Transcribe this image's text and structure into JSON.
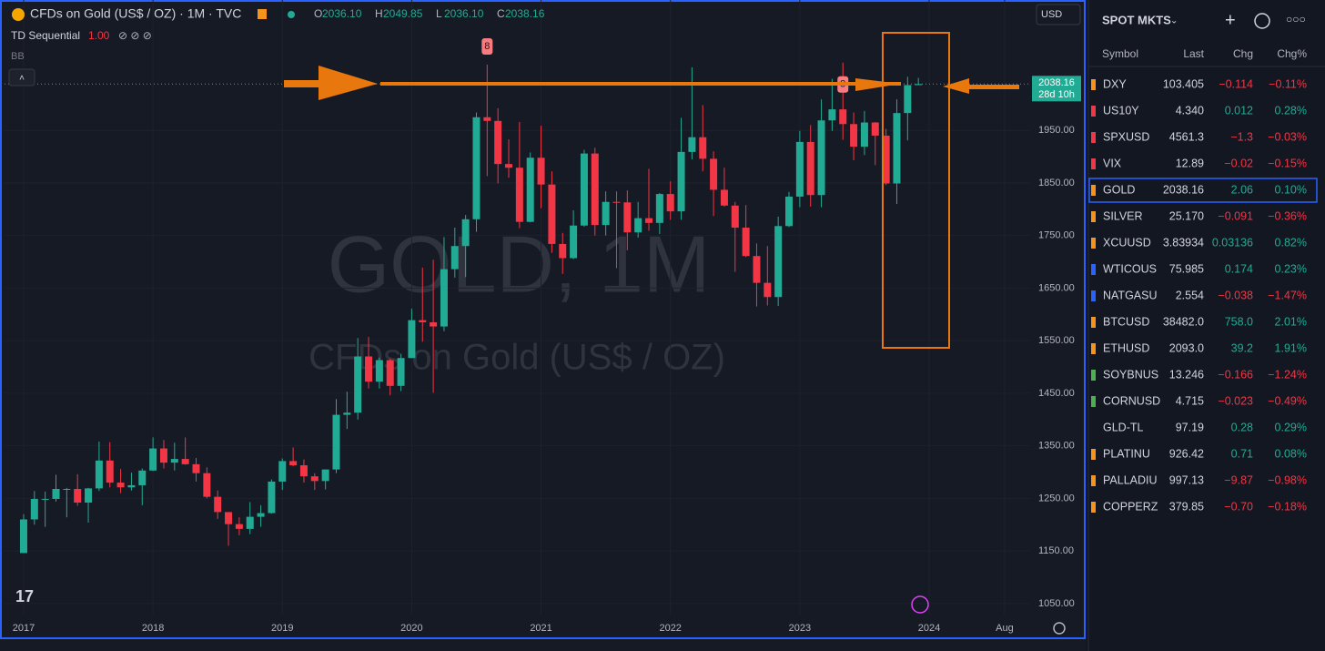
{
  "header": {
    "title": "CFDs on Gold (US$ / OZ) · 1M · TVC",
    "ohlc": [
      [
        "O",
        "2036.10"
      ],
      [
        "H",
        "2049.85"
      ],
      [
        "L",
        "2036.10"
      ],
      [
        "C",
        "2038.16"
      ]
    ],
    "indicator": "TD Sequential",
    "indicator_value": "1.00",
    "bb": "BB",
    "currency": "USD"
  },
  "chart_data": {
    "type": "candlestick",
    "watermark": "GOLD, 1M",
    "watermark_sub": "CFDs on Gold (US$ / OZ)",
    "up_color": "#22ab94",
    "down_color": "#f23645",
    "xlim": [
      -1.77,
      93.37
    ],
    "ylim": [
      1029,
      2198
    ],
    "xticks": [
      {
        "value": 0,
        "label": "2017"
      },
      {
        "value": 12,
        "label": "2018"
      },
      {
        "value": 24,
        "label": "2019"
      },
      {
        "value": 36,
        "label": "2020"
      },
      {
        "value": 48,
        "label": "2021"
      },
      {
        "value": 60,
        "label": "2022"
      },
      {
        "value": 72,
        "label": "2023"
      },
      {
        "value": 84,
        "label": "2024"
      },
      {
        "value": 91,
        "label": "Aug"
      }
    ],
    "yticks": [
      {
        "value": 1050,
        "label": "1050.00"
      },
      {
        "value": 1150,
        "label": "1150.00"
      },
      {
        "value": 1250,
        "label": "1250.00"
      },
      {
        "value": 1350,
        "label": "1350.00"
      },
      {
        "value": 1450,
        "label": "1450.00"
      },
      {
        "value": 1550,
        "label": "1550.00"
      },
      {
        "value": 1650,
        "label": "1650.00"
      },
      {
        "value": 1750,
        "label": "1750.00"
      },
      {
        "value": 1850,
        "label": "1850.00"
      },
      {
        "value": 1950,
        "label": "1950.00"
      }
    ],
    "last": 2038.16,
    "countdown": "28d 10h",
    "annotations": [
      {
        "text": "8",
        "x": 43
      },
      {
        "text": "8",
        "x": 76
      }
    ],
    "open": [
      1146,
      1210,
      1249,
      1249,
      1268,
      1268,
      1242,
      1269,
      1322,
      1280,
      1271,
      1275,
      1303,
      1345,
      1318,
      1325,
      1315,
      1298,
      1253,
      1224,
      1201,
      1192,
      1215,
      1222,
      1282,
      1321,
      1313,
      1292,
      1283,
      1305,
      1409,
      1413,
      1520,
      1472,
      1513,
      1464,
      1517,
      1589,
      1585,
      1577,
      1686,
      1730,
      1781,
      1975,
      1968,
      1886,
      1879,
      1776,
      1898,
      1847,
      1734,
      1707,
      1769,
      1906,
      1770,
      1814,
      1813,
      1756,
      1783,
      1774,
      1829,
      1796,
      1909,
      1937,
      1896,
      1837,
      1807,
      1765,
      1711,
      1660,
      1633,
      1768,
      1824,
      1928,
      1827,
      1969,
      1990,
      1962,
      1919,
      1965,
      1940,
      1849,
      1983,
      2036.1
    ],
    "high": [
      1220,
      1264,
      1263,
      1295,
      1270,
      1296,
      1270,
      1358,
      1357,
      1306,
      1299,
      1307,
      1366,
      1361,
      1356,
      1366,
      1327,
      1309,
      1265,
      1222,
      1214,
      1243,
      1237,
      1286,
      1326,
      1347,
      1324,
      1298,
      1305,
      1439,
      1453,
      1555,
      1557,
      1518,
      1516,
      1525,
      1611,
      1689,
      1704,
      1747,
      1765,
      1789,
      1984,
      2075,
      1992,
      1933,
      1966,
      1908,
      1959,
      1872,
      1755,
      1798,
      1913,
      1917,
      1834,
      1834,
      1836,
      1814,
      1877,
      1831,
      1853,
      1974,
      2070,
      1998,
      1910,
      1879,
      1814,
      1808,
      1735,
      1730,
      1786,
      1833,
      1949,
      1960,
      2009,
      2048,
      2079,
      1984,
      1987,
      1966,
      1953,
      2009,
      2052,
      2049.85
    ],
    "low": [
      1146,
      1200,
      1196,
      1244,
      1214,
      1236,
      1204,
      1264,
      1271,
      1260,
      1265,
      1237,
      1302,
      1307,
      1303,
      1314,
      1282,
      1250,
      1211,
      1160,
      1180,
      1182,
      1196,
      1221,
      1266,
      1311,
      1280,
      1266,
      1267,
      1298,
      1382,
      1400,
      1459,
      1459,
      1446,
      1454,
      1517,
      1548,
      1451,
      1568,
      1670,
      1671,
      1757,
      1863,
      1849,
      1860,
      1764,
      1775,
      1802,
      1717,
      1677,
      1705,
      1767,
      1750,
      1750,
      1688,
      1722,
      1746,
      1759,
      1753,
      1780,
      1780,
      1895,
      1872,
      1787,
      1805,
      1681,
      1709,
      1615,
      1617,
      1616,
      1766,
      1804,
      1805,
      1804,
      1949,
      1932,
      1893,
      1903,
      1884,
      1846,
      1810,
      1931,
      2036.1
    ],
    "close": [
      1210,
      1249,
      1249,
      1268,
      1268,
      1242,
      1269,
      1322,
      1280,
      1271,
      1275,
      1303,
      1345,
      1318,
      1325,
      1315,
      1298,
      1253,
      1224,
      1201,
      1192,
      1215,
      1222,
      1282,
      1321,
      1313,
      1292,
      1283,
      1305,
      1409,
      1413,
      1520,
      1472,
      1513,
      1464,
      1517,
      1589,
      1585,
      1577,
      1686,
      1730,
      1781,
      1975,
      1968,
      1886,
      1879,
      1776,
      1898,
      1847,
      1734,
      1707,
      1769,
      1906,
      1770,
      1814,
      1813,
      1756,
      1783,
      1774,
      1829,
      1796,
      1909,
      1937,
      1896,
      1837,
      1807,
      1765,
      1711,
      1660,
      1633,
      1768,
      1824,
      1928,
      1827,
      1969,
      1990,
      1962,
      1919,
      1965,
      1940,
      1849,
      1983,
      2036.1,
      2038.16
    ]
  },
  "watchlist": {
    "title": "SPOT MKTS",
    "columns": [
      "Symbol",
      "Last",
      "Chg",
      "Chg%"
    ],
    "rows": [
      {
        "flag": "#f7931a",
        "cells": [
          "DXY",
          "103.405",
          "−0.114",
          "−0.11%"
        ]
      },
      {
        "flag": "#f23645",
        "cells": [
          "US10Y",
          "4.340",
          "0.012",
          "0.28%"
        ]
      },
      {
        "flag": "#f23645",
        "cells": [
          "SPXUSD",
          "4561.3",
          "−1.3",
          "−0.03%"
        ]
      },
      {
        "flag": "#f23645",
        "cells": [
          "VIX",
          "12.89",
          "−0.02",
          "−0.15%"
        ]
      },
      {
        "flag": "#f7931a",
        "cells": [
          "GOLD",
          "2038.16",
          "2.06",
          "0.10%"
        ]
      },
      {
        "flag": "#f7931a",
        "cells": [
          "SILVER",
          "25.170",
          "−0.091",
          "−0.36%"
        ]
      },
      {
        "flag": "#f7931a",
        "cells": [
          "XCUUSD",
          "3.83934",
          "0.03136",
          "0.82%"
        ]
      },
      {
        "flag": "#2962ff",
        "cells": [
          "WTICOUS",
          "75.985",
          "0.174",
          "0.23%"
        ]
      },
      {
        "flag": "#2962ff",
        "cells": [
          "NATGASU",
          "2.554",
          "−0.038",
          "−1.47%"
        ]
      },
      {
        "flag": "#f7931a",
        "cells": [
          "BTCUSD",
          "38482.0",
          "758.0",
          "2.01%"
        ]
      },
      {
        "flag": "#f7931a",
        "cells": [
          "ETHUSD",
          "2093.0",
          "39.2",
          "1.91%"
        ]
      },
      {
        "flag": "#4caf50",
        "cells": [
          "SOYBNUS",
          "13.246",
          "−0.166",
          "−1.24%"
        ]
      },
      {
        "flag": "#4caf50",
        "cells": [
          "CORNUSD",
          "4.715",
          "−0.023",
          "−0.49%"
        ]
      },
      {
        "flag": "#131722",
        "cells": [
          "GLD-TL",
          "97.19",
          "0.28",
          "0.29%"
        ]
      },
      {
        "flag": "#f7931a",
        "cells": [
          "PLATINU",
          "926.42",
          "0.71",
          "0.08%"
        ]
      },
      {
        "flag": "#f7931a",
        "cells": [
          "PALLADIU",
          "997.13",
          "−9.87",
          "−0.98%"
        ]
      },
      {
        "flag": "#f7931a",
        "cells": [
          "COPPERZ",
          "379.85",
          "−0.70",
          "−0.18%"
        ]
      }
    ]
  }
}
